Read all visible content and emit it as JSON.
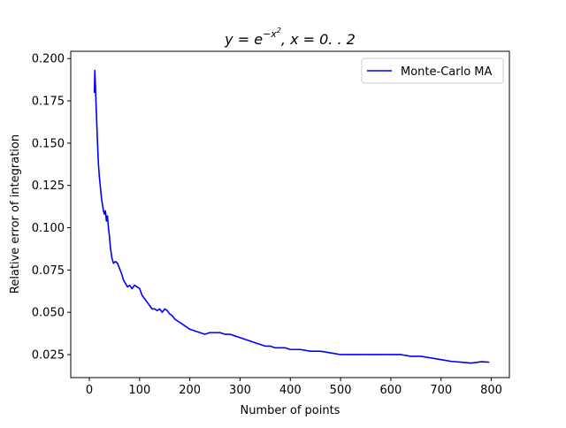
{
  "chart_data": {
    "type": "line",
    "title_parts": {
      "lhs": "y = e",
      "exponent": "−x",
      "exponent_power": "2",
      "rhs": ",  x = 0. . 2"
    },
    "xlabel": "Number of points",
    "ylabel": "Relative error of integration",
    "xlim": [
      -37,
      836
    ],
    "ylim": [
      0.0114,
      0.2043
    ],
    "xticks": [
      0,
      100,
      200,
      300,
      400,
      500,
      600,
      700,
      800
    ],
    "yticks": [
      0.025,
      0.05,
      0.075,
      0.1,
      0.125,
      0.15,
      0.175,
      0.2
    ],
    "xtick_labels": [
      "0",
      "100",
      "200",
      "300",
      "400",
      "500",
      "600",
      "700",
      "800"
    ],
    "ytick_labels": [
      "0.025",
      "0.050",
      "0.075",
      "0.100",
      "0.125",
      "0.150",
      "0.175",
      "0.200"
    ],
    "grid": false,
    "legend_position": "top-right",
    "series": [
      {
        "name": "Monte-Carlo MA",
        "color": "#0000ff",
        "points": [
          [
            10,
            0.18
          ],
          [
            11,
            0.193
          ],
          [
            12,
            0.185
          ],
          [
            13,
            0.176
          ],
          [
            14,
            0.168
          ],
          [
            15,
            0.16
          ],
          [
            16,
            0.152
          ],
          [
            17,
            0.145
          ],
          [
            18,
            0.138
          ],
          [
            20,
            0.13
          ],
          [
            22,
            0.124
          ],
          [
            24,
            0.118
          ],
          [
            26,
            0.114
          ],
          [
            28,
            0.11
          ],
          [
            30,
            0.108
          ],
          [
            32,
            0.11
          ],
          [
            34,
            0.104
          ],
          [
            36,
            0.107
          ],
          [
            38,
            0.1
          ],
          [
            40,
            0.095
          ],
          [
            42,
            0.088
          ],
          [
            45,
            0.082
          ],
          [
            48,
            0.079
          ],
          [
            52,
            0.08
          ],
          [
            56,
            0.079
          ],
          [
            60,
            0.076
          ],
          [
            64,
            0.073
          ],
          [
            68,
            0.069
          ],
          [
            72,
            0.067
          ],
          [
            76,
            0.065
          ],
          [
            80,
            0.066
          ],
          [
            85,
            0.064
          ],
          [
            90,
            0.066
          ],
          [
            95,
            0.065
          ],
          [
            100,
            0.064
          ],
          [
            105,
            0.06
          ],
          [
            110,
            0.058
          ],
          [
            115,
            0.056
          ],
          [
            120,
            0.054
          ],
          [
            125,
            0.052
          ],
          [
            130,
            0.052
          ],
          [
            135,
            0.051
          ],
          [
            140,
            0.052
          ],
          [
            145,
            0.05
          ],
          [
            150,
            0.052
          ],
          [
            155,
            0.051
          ],
          [
            160,
            0.049
          ],
          [
            165,
            0.048
          ],
          [
            170,
            0.046
          ],
          [
            175,
            0.045
          ],
          [
            180,
            0.044
          ],
          [
            185,
            0.043
          ],
          [
            190,
            0.042
          ],
          [
            195,
            0.041
          ],
          [
            200,
            0.04
          ],
          [
            210,
            0.039
          ],
          [
            220,
            0.038
          ],
          [
            230,
            0.037
          ],
          [
            240,
            0.038
          ],
          [
            250,
            0.038
          ],
          [
            260,
            0.038
          ],
          [
            270,
            0.037
          ],
          [
            280,
            0.037
          ],
          [
            290,
            0.036
          ],
          [
            300,
            0.035
          ],
          [
            310,
            0.034
          ],
          [
            320,
            0.033
          ],
          [
            330,
            0.032
          ],
          [
            340,
            0.031
          ],
          [
            350,
            0.03
          ],
          [
            360,
            0.03
          ],
          [
            370,
            0.029
          ],
          [
            380,
            0.029
          ],
          [
            390,
            0.029
          ],
          [
            400,
            0.028
          ],
          [
            420,
            0.028
          ],
          [
            440,
            0.027
          ],
          [
            460,
            0.027
          ],
          [
            480,
            0.026
          ],
          [
            500,
            0.025
          ],
          [
            520,
            0.025
          ],
          [
            540,
            0.025
          ],
          [
            560,
            0.025
          ],
          [
            580,
            0.025
          ],
          [
            600,
            0.025
          ],
          [
            620,
            0.025
          ],
          [
            640,
            0.024
          ],
          [
            660,
            0.024
          ],
          [
            680,
            0.023
          ],
          [
            700,
            0.022
          ],
          [
            720,
            0.021
          ],
          [
            740,
            0.0205
          ],
          [
            760,
            0.02
          ],
          [
            780,
            0.0208
          ],
          [
            795,
            0.0205
          ]
        ]
      }
    ]
  }
}
